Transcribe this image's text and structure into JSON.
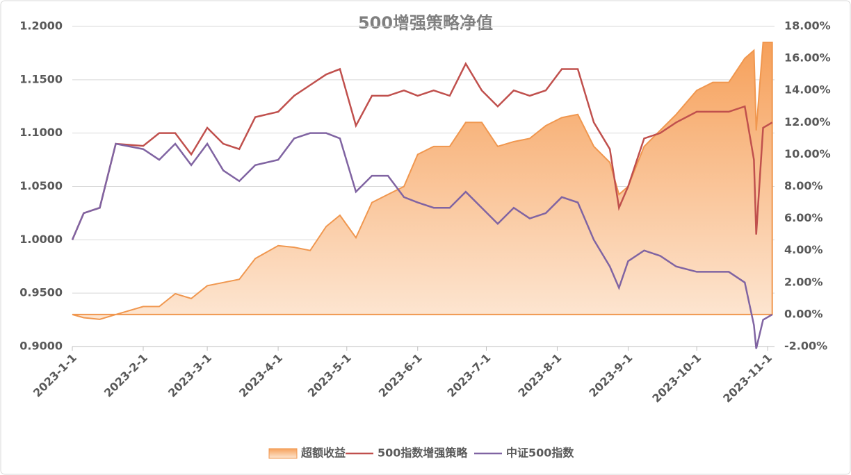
{
  "chart_data": {
    "type": "line",
    "title": "500增强策略净值",
    "x": [
      "2023-1-1",
      "2023-1-6",
      "2023-1-13",
      "2023-1-20",
      "2023-2-1",
      "2023-2-8",
      "2023-2-15",
      "2023-2-22",
      "2023-3-1",
      "2023-3-8",
      "2023-3-15",
      "2023-3-22",
      "2023-4-1",
      "2023-4-8",
      "2023-4-15",
      "2023-4-22",
      "2023-4-28",
      "2023-5-5",
      "2023-5-12",
      "2023-5-19",
      "2023-5-26",
      "2023-6-1",
      "2023-6-8",
      "2023-6-15",
      "2023-6-22",
      "2023-6-29",
      "2023-7-6",
      "2023-7-13",
      "2023-7-20",
      "2023-7-27",
      "2023-8-3",
      "2023-8-10",
      "2023-8-17",
      "2023-8-24",
      "2023-8-28",
      "2023-9-1",
      "2023-9-8",
      "2023-9-15",
      "2023-9-22",
      "2023-10-1",
      "2023-10-8",
      "2023-10-15",
      "2023-10-22",
      "2023-10-26",
      "2023-10-27",
      "2023-10-30",
      "2023-11-3"
    ],
    "series": [
      {
        "name": "超额收益",
        "color": "#f0974f",
        "axis": "y2",
        "kind": "area",
        "values": [
          0,
          -0.2,
          -0.3,
          0,
          0.5,
          0.5,
          1.3,
          1.0,
          1.8,
          2.0,
          2.2,
          3.5,
          4.3,
          4.2,
          4.0,
          5.5,
          6.2,
          4.8,
          7.0,
          7.5,
          8.0,
          10.0,
          10.5,
          10.5,
          12.0,
          12.0,
          10.5,
          10.8,
          11.0,
          11.8,
          12.3,
          12.5,
          10.5,
          9.5,
          7.5,
          8.0,
          10.5,
          11.5,
          12.5,
          14.0,
          14.5,
          14.5,
          16.0,
          16.5,
          11.5,
          17.0,
          17.0
        ]
      },
      {
        "name": "500指数增强策略",
        "color": "#c0504d",
        "values": [
          1.0,
          1.025,
          1.03,
          1.09,
          1.088,
          1.1,
          1.1,
          1.08,
          1.105,
          1.09,
          1.085,
          1.115,
          1.12,
          1.135,
          1.145,
          1.155,
          1.16,
          1.107,
          1.135,
          1.135,
          1.14,
          1.135,
          1.14,
          1.135,
          1.165,
          1.14,
          1.125,
          1.14,
          1.135,
          1.14,
          1.16,
          1.16,
          1.11,
          1.085,
          1.03,
          1.05,
          1.095,
          1.1,
          1.11,
          1.12,
          1.12,
          1.12,
          1.125,
          1.075,
          1.005,
          1.105,
          1.11
        ]
      },
      {
        "name": "中证500指数",
        "color": "#8064a2",
        "values": [
          1.0,
          1.025,
          1.03,
          1.09,
          1.085,
          1.075,
          1.09,
          1.07,
          1.09,
          1.065,
          1.055,
          1.07,
          1.075,
          1.095,
          1.1,
          1.1,
          1.095,
          1.045,
          1.06,
          1.06,
          1.04,
          1.035,
          1.03,
          1.03,
          1.045,
          1.03,
          1.015,
          1.03,
          1.02,
          1.025,
          1.04,
          1.035,
          1.0,
          0.975,
          0.955,
          0.98,
          0.99,
          0.985,
          0.975,
          0.97,
          0.97,
          0.97,
          0.96,
          0.92,
          0.898,
          0.925,
          0.93
        ]
      }
    ],
    "xlim": [
      "2023-1-1",
      "2023-11-4"
    ],
    "xticks": [
      "2023-1-1",
      "2023-2-1",
      "2023-3-1",
      "2023-4-1",
      "2023-5-1",
      "2023-6-1",
      "2023-7-1",
      "2023-8-1",
      "2023-9-1",
      "2023-10-1",
      "2023-11-1"
    ],
    "ylim": [
      0.9,
      1.2
    ],
    "yticks": [
      {
        "value": 0.9,
        "label": "0.9000"
      },
      {
        "value": 0.95,
        "label": "0.9500"
      },
      {
        "value": 1.0,
        "label": "1.0000"
      },
      {
        "value": 1.05,
        "label": "1.0500"
      },
      {
        "value": 1.1,
        "label": "1.1000"
      },
      {
        "value": 1.15,
        "label": "1.1500"
      },
      {
        "value": 1.2,
        "label": "1.2000"
      }
    ],
    "y2lim": [
      -2,
      18
    ],
    "y2ticks": [
      {
        "value": -2,
        "label": "-2.00%"
      },
      {
        "value": 0,
        "label": "0.00%"
      },
      {
        "value": 2,
        "label": "2.00%"
      },
      {
        "value": 4,
        "label": "4.00%"
      },
      {
        "value": 6,
        "label": "6.00%"
      },
      {
        "value": 8,
        "label": "8.00%"
      },
      {
        "value": 10,
        "label": "10.00%"
      },
      {
        "value": 12,
        "label": "12.00%"
      },
      {
        "value": 14,
        "label": "14.00%"
      },
      {
        "value": 16,
        "label": "16.00%"
      },
      {
        "value": 18,
        "label": "18.00%"
      }
    ],
    "grid": true,
    "legend": "bottom"
  }
}
